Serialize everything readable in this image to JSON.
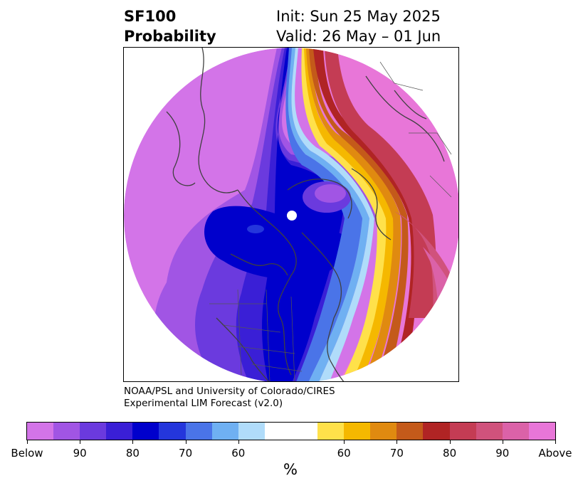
{
  "header": {
    "title_line1": "SF100",
    "title_line2": "Probability",
    "init": "Init: Sun 25 May 2025",
    "valid": "Valid: 26 May – 01 Jun"
  },
  "credit": {
    "line1": "NOAA/PSL and University of Colorado/CIRES",
    "line2": "Experimental LIM Forecast (v2.0)"
  },
  "colorbar": {
    "colors": [
      "#d374e8",
      "#a155e4",
      "#6b3ade",
      "#3a1fd6",
      "#0000cc",
      "#2436dc",
      "#4a74e8",
      "#6fb0f2",
      "#b0dcfa",
      "#ffffff",
      "#ffffff",
      "#ffe14a",
      "#f5b800",
      "#e08a10",
      "#c45a1a",
      "#b02424",
      "#c43c54",
      "#d0527c",
      "#db62a8",
      "#e876d8"
    ],
    "tick_labels": [
      "Below",
      "90",
      "80",
      "70",
      "60",
      "60",
      "70",
      "80",
      "90",
      "Above"
    ],
    "units": "%"
  },
  "map": {
    "projection": "north-polar-stereographic",
    "coastline_color": "#404040"
  }
}
